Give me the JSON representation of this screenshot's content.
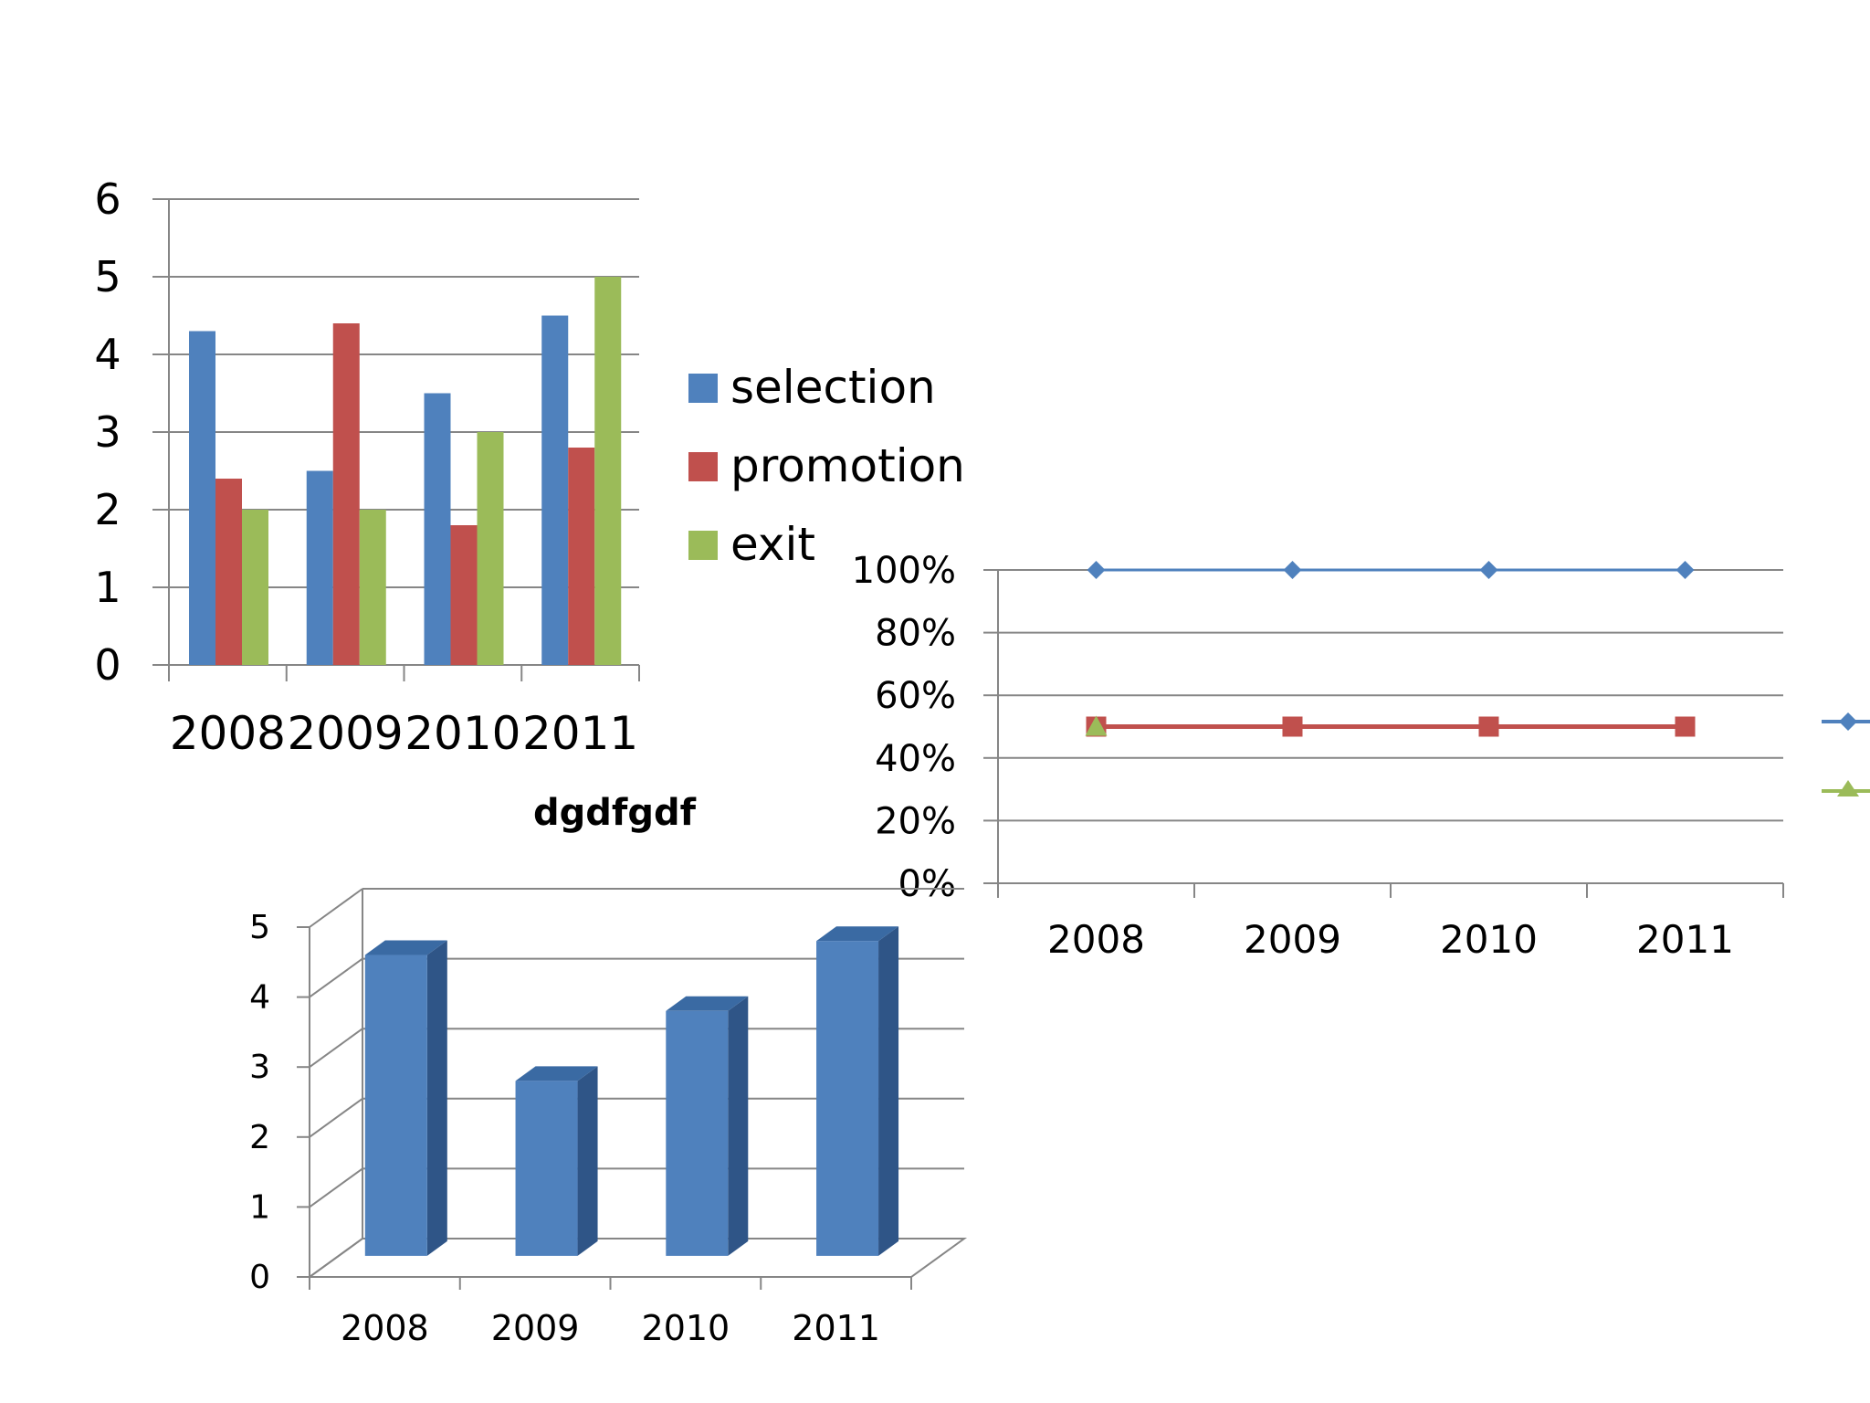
{
  "colors": {
    "selection": "#4f81bd",
    "promotion": "#c0504d",
    "exit": "#9bbb59",
    "grid": "#868686",
    "bar3d_front": "#4f81bd",
    "bar3d_side": "#2f5587",
    "bar3d_top": "#3a6aa3"
  },
  "chart_data": [
    {
      "type": "bar",
      "categories": [
        "2008",
        "2009",
        "2010",
        "2011"
      ],
      "series": [
        {
          "name": "selection",
          "values": [
            4.3,
            2.5,
            3.5,
            4.5
          ]
        },
        {
          "name": "promotion",
          "values": [
            2.4,
            4.4,
            1.8,
            2.8
          ]
        },
        {
          "name": "exit",
          "values": [
            2.0,
            2.0,
            3.0,
            5.0
          ]
        }
      ],
      "ylim": [
        0,
        6
      ],
      "yticks": [
        "0",
        "1",
        "2",
        "3",
        "4",
        "5",
        "6"
      ],
      "grid": true,
      "legend": "right"
    },
    {
      "type": "line",
      "categories": [
        "2008",
        "2009",
        "2010",
        "2011"
      ],
      "series": [
        {
          "values": [
            100,
            100,
            100,
            100
          ]
        },
        {
          "values": [
            50,
            50,
            50,
            50
          ]
        },
        {
          "values": [
            50,
            null,
            null,
            null
          ]
        }
      ],
      "ylim": [
        0,
        100
      ],
      "yticks": [
        "0%",
        "20%",
        "40%",
        "60%",
        "80%",
        "100%"
      ],
      "grid": true,
      "legend": "right"
    },
    {
      "type": "bar",
      "title": "dgdfgdf",
      "categories": [
        "2008",
        "2009",
        "2010",
        "2011"
      ],
      "values": [
        4.3,
        2.5,
        3.5,
        4.5
      ],
      "ylim": [
        0,
        5
      ],
      "yticks": [
        "0",
        "1",
        "2",
        "3",
        "4",
        "5"
      ],
      "grid": true,
      "style": "3d"
    }
  ]
}
